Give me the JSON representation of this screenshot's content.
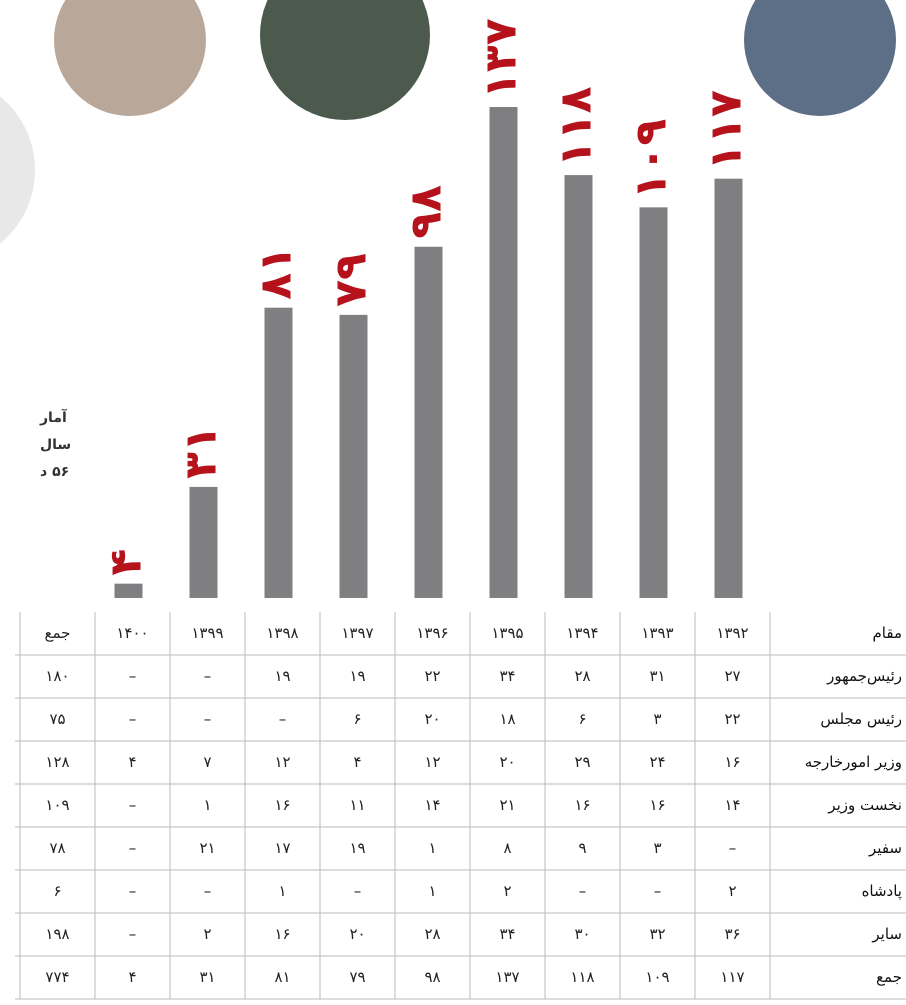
{
  "chart_data": {
    "type": "bar",
    "color": "#7f7f82",
    "values": [
      117,
      109,
      118,
      137,
      98,
      79,
      81,
      31,
      4
    ],
    "value_labels": [
      "۱۱۷",
      "۱۰۹",
      "۱۱۸",
      "۱۳۷",
      "۹۸",
      "۷۹",
      "۸۱",
      "۳۱",
      "۴"
    ],
    "label_color": "#b5121b"
  },
  "side_text": [
    "آمار",
    "سال",
    "۵۶ د"
  ],
  "table": {
    "header": [
      "مقام",
      "۱۳۹۲",
      "۱۳۹۳",
      "۱۳۹۴",
      "۱۳۹۵",
      "۱۳۹۶",
      "۱۳۹۷",
      "۱۳۹۸",
      "۱۳۹۹",
      "۱۴۰۰",
      "جمع"
    ],
    "rows": [
      [
        "رئیس‌جمهور",
        "۲۷",
        "۳۱",
        "۲۸",
        "۳۴",
        "۲۲",
        "۱۹",
        "۱۹",
        "–",
        "–",
        "۱۸۰"
      ],
      [
        "رئیس مجلس",
        "۲۲",
        "۳",
        "۶",
        "۱۸",
        "۲۰",
        "۶",
        "–",
        "–",
        "–",
        "۷۵"
      ],
      [
        "وزیر امورخارجه",
        "۱۶",
        "۲۴",
        "۲۹",
        "۲۰",
        "۱۲",
        "۴",
        "۱۲",
        "۷",
        "۴",
        "۱۲۸"
      ],
      [
        "نخست وزیر",
        "۱۴",
        "۱۶",
        "۱۶",
        "۲۱",
        "۱۴",
        "۱۱",
        "۱۶",
        "۱",
        "–",
        "۱۰۹"
      ],
      [
        "سفیر",
        "–",
        "۳",
        "۹",
        "۸",
        "۱",
        "۱۹",
        "۱۷",
        "۲۱",
        "–",
        "۷۸"
      ],
      [
        "پادشاه",
        "۲",
        "–",
        "–",
        "۲",
        "۱",
        "–",
        "۱",
        "–",
        "–",
        "۶"
      ],
      [
        "سایر",
        "۳۶",
        "۳۲",
        "۳۰",
        "۳۴",
        "۲۸",
        "۲۰",
        "۱۶",
        "۲",
        "–",
        "۱۹۸"
      ],
      [
        "جمع",
        "۱۱۷",
        "۱۰۹",
        "۱۱۸",
        "۱۳۷",
        "۹۸",
        "۷۹",
        "۸۱",
        "۳۱",
        "۴",
        "۷۷۴"
      ]
    ]
  }
}
